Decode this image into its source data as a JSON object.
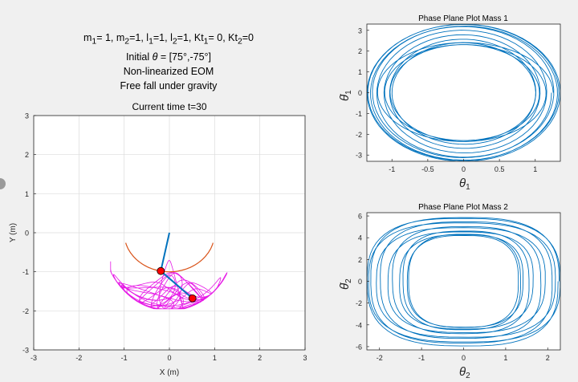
{
  "info": {
    "params": {
      "m": "m",
      "s1": "1",
      "eq1": "= 1, ",
      "s2": "2",
      "eq2": "=1, l",
      "s3": "1",
      "eq3": "=1, l",
      "s4": "2",
      "eq4": "=1, Kt",
      "s5": "1",
      "eq5": "= 0, Kt",
      "s6": "2",
      "eq6": "=0"
    },
    "initial_prefix": "Initial ",
    "theta_symbol": "θ",
    "initial_value": " = [75°,-75°]",
    "line3": "Non-linearized EOM",
    "line4": "Free fall under gravity"
  },
  "colors": {
    "axes_bg": "#ffffff",
    "grid": "#dcdcdc",
    "axis": "#262626",
    "trace": "#e619e6",
    "rod": "#0072bd",
    "arc": "#d95319",
    "mass": "#ff0000",
    "phase": "#0072bd"
  },
  "chart_data": [
    {
      "type": "line",
      "title": "Current time t=30",
      "xlabel": "X (m)",
      "ylabel": "Y (m)",
      "xlim": [
        -3,
        3
      ],
      "ylim": [
        -3,
        3
      ],
      "xticks": [
        "-3",
        "-2",
        "-1",
        "0",
        "1",
        "2",
        "3"
      ],
      "yticks": [
        "3",
        "2",
        "1",
        "0",
        "-1",
        "-2",
        "-3"
      ],
      "grid": true,
      "pivot": [
        0,
        0
      ],
      "mass1": [
        -0.19,
        -0.98
      ],
      "mass2": [
        0.51,
        -1.68
      ],
      "upper_arm": [
        [
          0,
          0
        ],
        [
          -0.19,
          -0.98
        ]
      ],
      "lower_arm": [
        [
          -0.19,
          -0.98
        ],
        [
          0.51,
          -1.68
        ]
      ],
      "arc_angle_range_deg": [
        -75,
        75
      ],
      "arc_radius": 1,
      "trace_extent_x": [
        -1.3,
        1.3
      ],
      "trace_extent_y": [
        -1.95,
        -0.5
      ]
    },
    {
      "type": "line",
      "title": "Phase Plane Plot Mass 1",
      "xlabel": "θ",
      "xlabel_sub": "1",
      "ylabel": "θ̇",
      "ylabel_sub": "1",
      "xlim": [
        -1.35,
        1.35
      ],
      "ylim": [
        -3.3,
        3.3
      ],
      "xticks": [
        "-1",
        "-0.5",
        "0",
        "0.5",
        "1"
      ],
      "yticks": [
        "3",
        "2",
        "1",
        "0",
        "-1",
        "-2",
        "-3"
      ],
      "amplitude_range": [
        1.0,
        1.35
      ],
      "velocity_range": [
        2.3,
        3.3
      ]
    },
    {
      "type": "line",
      "title": "Phase Plane Plot Mass 2",
      "xlabel": "θ",
      "xlabel_sub": "2",
      "ylabel": "θ̇",
      "ylabel_sub": "2",
      "xlim": [
        -2.3,
        2.3
      ],
      "ylim": [
        -6.3,
        6.3
      ],
      "xticks": [
        "-2",
        "-1",
        "0",
        "1",
        "2"
      ],
      "yticks": [
        "6",
        "4",
        "2",
        "0",
        "-2",
        "-4",
        "-6"
      ],
      "amplitude_range": [
        1.3,
        2.3
      ],
      "velocity_range": [
        4.2,
        6.2
      ]
    }
  ]
}
